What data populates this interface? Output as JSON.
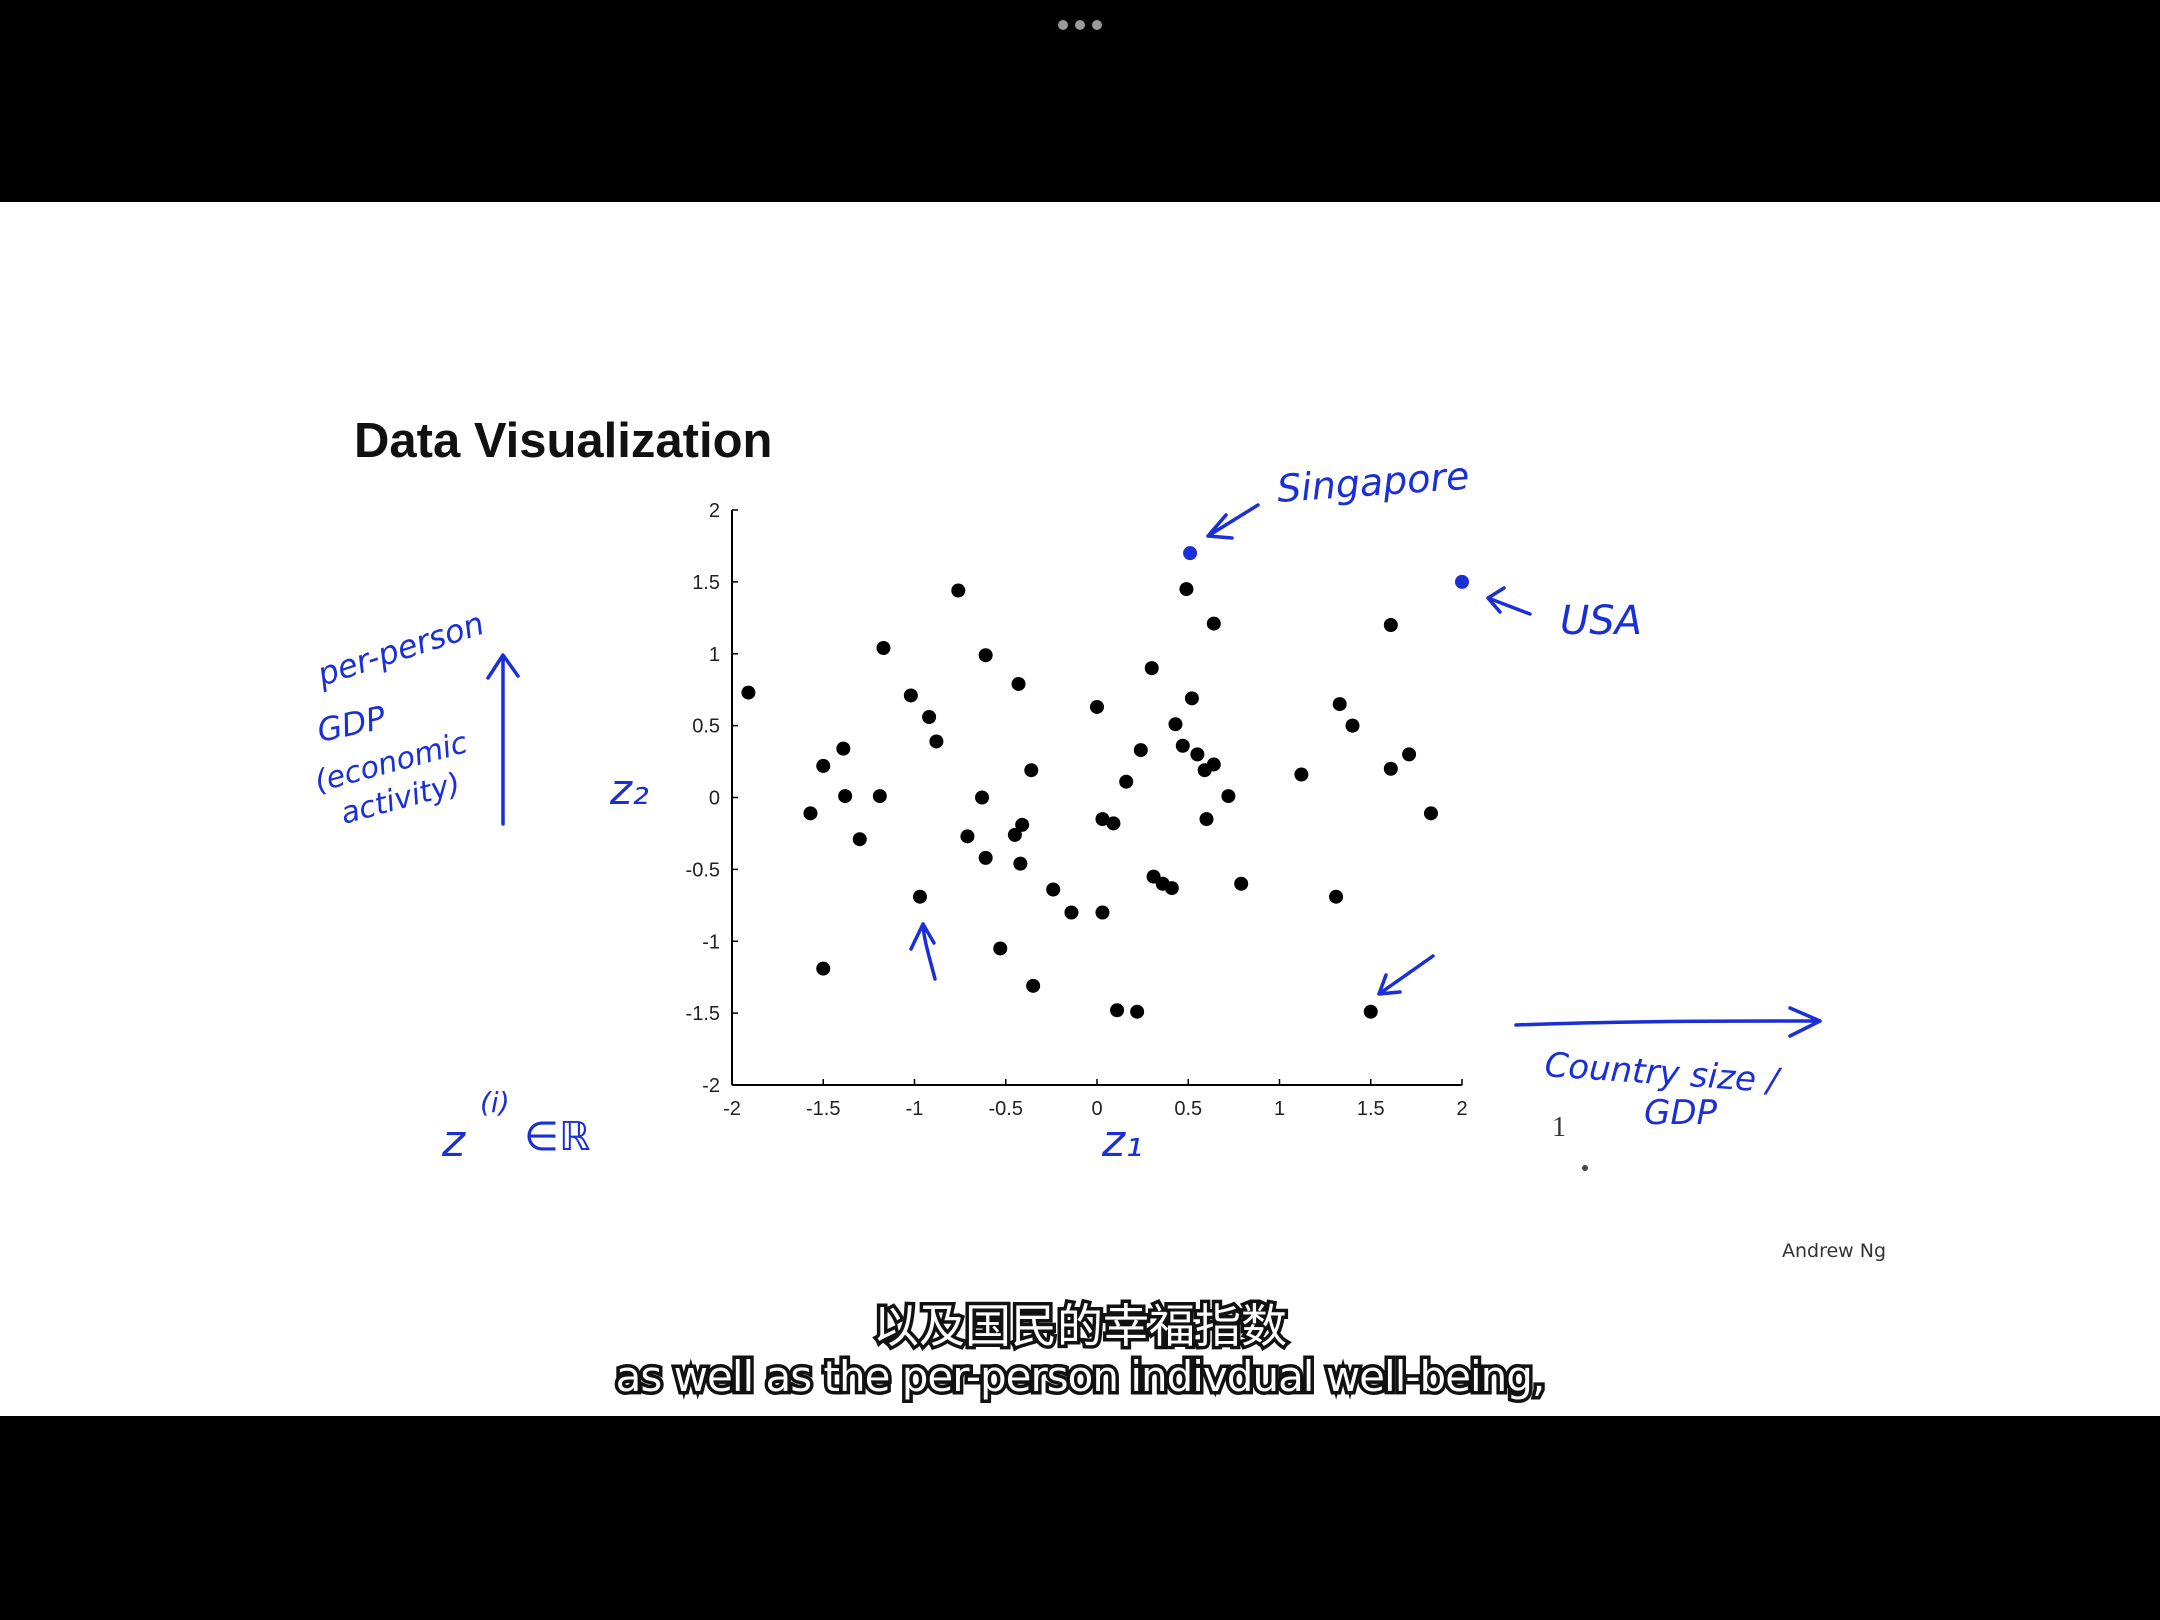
{
  "slide": {
    "title": "Data Visualization",
    "author": "Andrew Ng"
  },
  "chart_data": {
    "type": "scatter",
    "xlim": [
      -2,
      2
    ],
    "ylim": [
      -2,
      2
    ],
    "x_ticks": [
      "-2",
      "-1.5",
      "-1",
      "-0.5",
      "0",
      "0.5",
      "1",
      "1.5",
      "2"
    ],
    "y_ticks": [
      "2",
      "1.5",
      "1",
      "0.5",
      "0",
      "-0.5",
      "-1",
      "-1.5",
      "-2"
    ],
    "grid": false,
    "points": [
      [
        -1.91,
        0.73
      ],
      [
        -1.57,
        -0.11
      ],
      [
        -1.5,
        0.22
      ],
      [
        -1.39,
        0.34
      ],
      [
        -1.38,
        0.01
      ],
      [
        -1.3,
        -0.29
      ],
      [
        -1.5,
        -1.19
      ],
      [
        -1.19,
        0.01
      ],
      [
        -1.17,
        1.04
      ],
      [
        -1.02,
        0.71
      ],
      [
        -0.92,
        0.56
      ],
      [
        -0.88,
        0.39
      ],
      [
        -0.97,
        -0.69
      ],
      [
        -0.76,
        1.44
      ],
      [
        -0.71,
        -0.27
      ],
      [
        -0.63,
        0.0
      ],
      [
        -0.61,
        0.99
      ],
      [
        -0.61,
        -0.42
      ],
      [
        -0.53,
        -1.05
      ],
      [
        -0.45,
        -0.26
      ],
      [
        -0.43,
        0.79
      ],
      [
        -0.42,
        -0.46
      ],
      [
        -0.41,
        -0.19
      ],
      [
        -0.36,
        0.19
      ],
      [
        -0.35,
        -1.31
      ],
      [
        -0.24,
        -0.64
      ],
      [
        -0.14,
        -0.8
      ],
      [
        0.0,
        0.63
      ],
      [
        0.03,
        -0.8
      ],
      [
        0.03,
        -0.15
      ],
      [
        0.09,
        -0.18
      ],
      [
        0.11,
        -1.48
      ],
      [
        0.16,
        0.11
      ],
      [
        0.22,
        -1.49
      ],
      [
        0.24,
        0.33
      ],
      [
        0.3,
        0.9
      ],
      [
        0.31,
        -0.55
      ],
      [
        0.36,
        -0.6
      ],
      [
        0.41,
        -0.63
      ],
      [
        0.43,
        0.51
      ],
      [
        0.47,
        0.36
      ],
      [
        0.49,
        1.45
      ],
      [
        0.52,
        0.69
      ],
      [
        0.55,
        0.3
      ],
      [
        0.59,
        0.19
      ],
      [
        0.6,
        -0.15
      ],
      [
        0.64,
        0.23
      ],
      [
        0.64,
        1.21
      ],
      [
        0.72,
        0.01
      ],
      [
        0.79,
        -0.6
      ],
      [
        1.12,
        0.16
      ],
      [
        1.31,
        -0.69
      ],
      [
        1.33,
        0.65
      ],
      [
        1.4,
        0.5
      ],
      [
        1.5,
        -1.49
      ],
      [
        1.61,
        1.2
      ],
      [
        1.61,
        0.2
      ],
      [
        1.71,
        0.3
      ],
      [
        1.83,
        -0.11
      ]
    ],
    "highlighted_points": [
      {
        "x": 0.51,
        "y": 1.7,
        "label": "Singapore",
        "color": "#1a2fd6"
      },
      {
        "x": 2.0,
        "y": 1.5,
        "label": "USA",
        "color": "#1a2fd6"
      }
    ],
    "point_color": "#000000"
  },
  "handwriting": {
    "ink_color": "#1a2fd6",
    "y_axis_name": "z₂",
    "x_axis_name": "z₁",
    "y_description": [
      "per-person",
      "GDP",
      "(economic",
      "activity)"
    ],
    "x_description": [
      "Country size /",
      "GDP"
    ],
    "formula": {
      "base": "z",
      "superscript": "(i)",
      "rest": "∈ℝ"
    },
    "page_marker": "1"
  },
  "subtitles": {
    "zh": "以及国民的幸福指数",
    "en": "as well as the per-person indivdual well-being,"
  }
}
